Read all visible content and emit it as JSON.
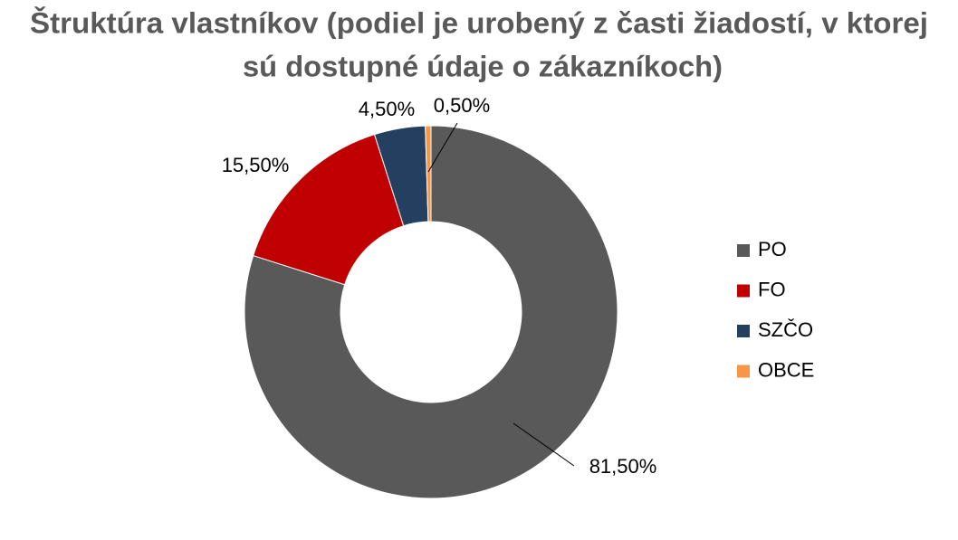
{
  "chart_data": {
    "type": "donut",
    "title": [
      "Štruktúra vlastníkov (podiel je urobený z časti žiadostí, v ktorej",
      "sú dostupné údaje o zákazníkoch)"
    ],
    "categories": [
      "PO",
      "FO",
      "SZČO",
      "OBCE"
    ],
    "values": [
      81.5,
      15.5,
      4.5,
      0.5
    ],
    "value_labels": [
      "81,50%",
      "15,50%",
      "4,50%",
      "0,50%"
    ],
    "colors": [
      "#595959",
      "#c00000",
      "#243f60",
      "#f79646"
    ],
    "legend": "right"
  }
}
